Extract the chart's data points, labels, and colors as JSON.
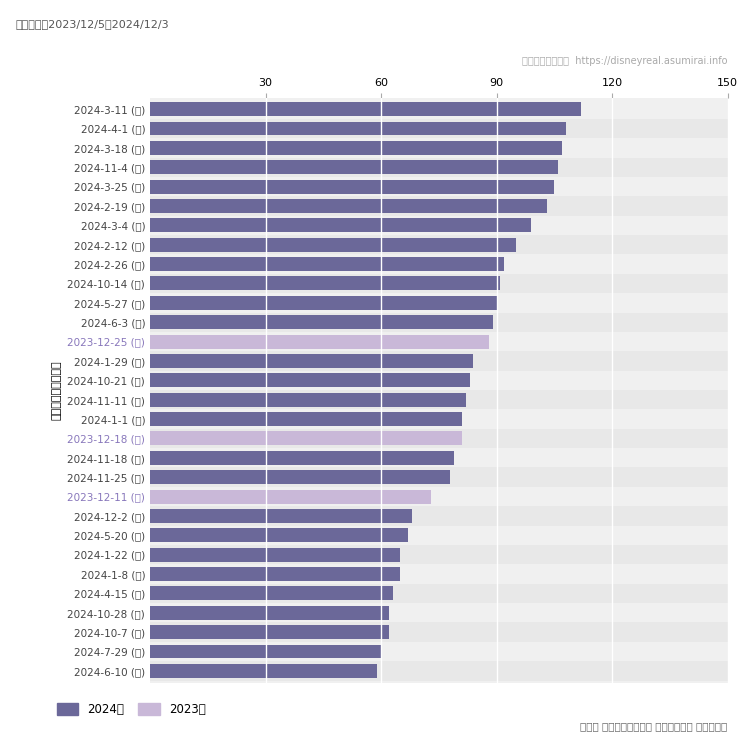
{
  "labels": [
    "2024-3-11 (月)",
    "2024-4-1 (月)",
    "2024-3-18 (月)",
    "2024-11-4 (月)",
    "2024-3-25 (月)",
    "2024-2-19 (月)",
    "2024-3-4 (月)",
    "2024-2-12 (月)",
    "2024-2-26 (月)",
    "2024-10-14 (月)",
    "2024-5-27 (月)",
    "2024-6-3 (月)",
    "2023-12-25 (月)",
    "2024-1-29 (月)",
    "2024-10-21 (月)",
    "2024-11-11 (月)",
    "2024-1-1 (月)",
    "2023-12-18 (月)",
    "2024-11-18 (月)",
    "2024-11-25 (月)",
    "2023-12-11 (月)",
    "2024-12-2 (月)",
    "2024-5-20 (月)",
    "2024-1-22 (月)",
    "2024-1-8 (月)",
    "2024-4-15 (月)",
    "2024-10-28 (月)",
    "2024-10-7 (月)",
    "2024-7-29 (月)",
    "2024-6-10 (月)"
  ],
  "values": [
    112,
    108,
    107,
    106,
    105,
    103,
    99,
    95,
    92,
    91,
    90,
    89,
    88,
    84,
    83,
    82,
    81,
    81,
    79,
    78,
    73,
    68,
    67,
    65,
    65,
    63,
    62,
    62,
    60,
    59
  ],
  "colors": [
    "#6b6899",
    "#6b6899",
    "#6b6899",
    "#6b6899",
    "#6b6899",
    "#6b6899",
    "#6b6899",
    "#6b6899",
    "#6b6899",
    "#6b6899",
    "#6b6899",
    "#6b6899",
    "#c9b8d8",
    "#6b6899",
    "#6b6899",
    "#6b6899",
    "#6b6899",
    "#c9b8d8",
    "#6b6899",
    "#6b6899",
    "#c9b8d8",
    "#6b6899",
    "#6b6899",
    "#6b6899",
    "#6b6899",
    "#6b6899",
    "#6b6899",
    "#6b6899",
    "#6b6899",
    "#6b6899"
  ],
  "label_colors": [
    "#444444",
    "#444444",
    "#444444",
    "#444444",
    "#444444",
    "#444444",
    "#444444",
    "#444444",
    "#444444",
    "#444444",
    "#444444",
    "#444444",
    "#8877bb",
    "#444444",
    "#444444",
    "#444444",
    "#444444",
    "#8877bb",
    "#444444",
    "#444444",
    "#8877bb",
    "#444444",
    "#444444",
    "#444444",
    "#444444",
    "#444444",
    "#444444",
    "#444444",
    "#444444",
    "#444444"
  ],
  "title_top": "集計期間：2023/12/5～2024/12/3",
  "watermark_left": "ディズニーリアル",
  "watermark_right": "https://disneyreal.asumirai.info",
  "ylabel": "平均待ち時間（分）",
  "xticks": [
    30,
    60,
    90,
    120,
    150
  ],
  "xlim": [
    0,
    150
  ],
  "legend_2024_label": "2024年",
  "legend_2023_label": "2023年",
  "footer_right": "月曜日 ディズニーランド 平均待ち時間 ランキング",
  "color_2024": "#6b6899",
  "color_2023": "#c9b8d8",
  "bg_plot": "#f0f0f0",
  "bg_alt": "#e8e8e8",
  "bg_figure": "#ffffff",
  "grid_color": "#ffffff"
}
